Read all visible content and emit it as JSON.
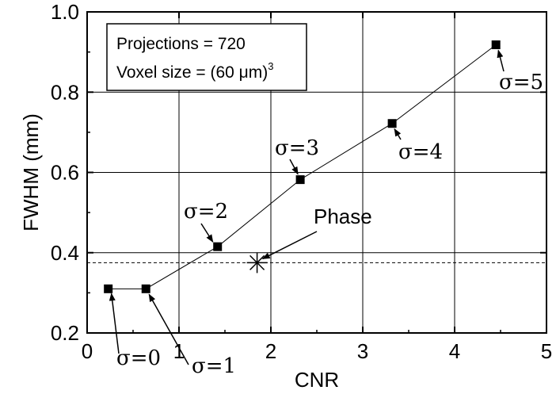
{
  "chart_data": {
    "type": "scatter",
    "xlabel": "CNR",
    "ylabel": "FWHM (mm)",
    "xlim": [
      0,
      5
    ],
    "ylim": [
      0.2,
      1.0
    ],
    "x_ticks": [
      0,
      1,
      2,
      3,
      4,
      5
    ],
    "y_ticks": [
      0.2,
      0.4,
      0.6,
      0.8,
      1.0
    ],
    "x_tick_labels": [
      "0",
      "1",
      "2",
      "3",
      "4",
      "5"
    ],
    "y_tick_labels": [
      "0.2",
      "0.4",
      "0.6",
      "0.8",
      "1.0"
    ],
    "grid": true,
    "series": [
      {
        "marker": "square",
        "line": "solid",
        "points": [
          {
            "x": 0.23,
            "y": 0.31,
            "label": "σ=0"
          },
          {
            "x": 0.64,
            "y": 0.31,
            "label": "σ=1"
          },
          {
            "x": 1.42,
            "y": 0.415,
            "label": "σ=2"
          },
          {
            "x": 2.32,
            "y": 0.582,
            "label": "σ=3"
          },
          {
            "x": 3.32,
            "y": 0.722,
            "label": "σ=4"
          },
          {
            "x": 4.45,
            "y": 0.918,
            "label": "σ=5"
          }
        ]
      },
      {
        "marker": "asterisk",
        "points": [
          {
            "x": 1.85,
            "y": 0.375,
            "label": "Phase"
          }
        ]
      }
    ],
    "reference_line": {
      "y": 0.375,
      "style": "dashed"
    },
    "info_box": {
      "line1": "Projections = 720",
      "line2_prefix": "Voxel size = (60 ",
      "line2_unit": "μm)",
      "line2_exp": "3"
    }
  }
}
